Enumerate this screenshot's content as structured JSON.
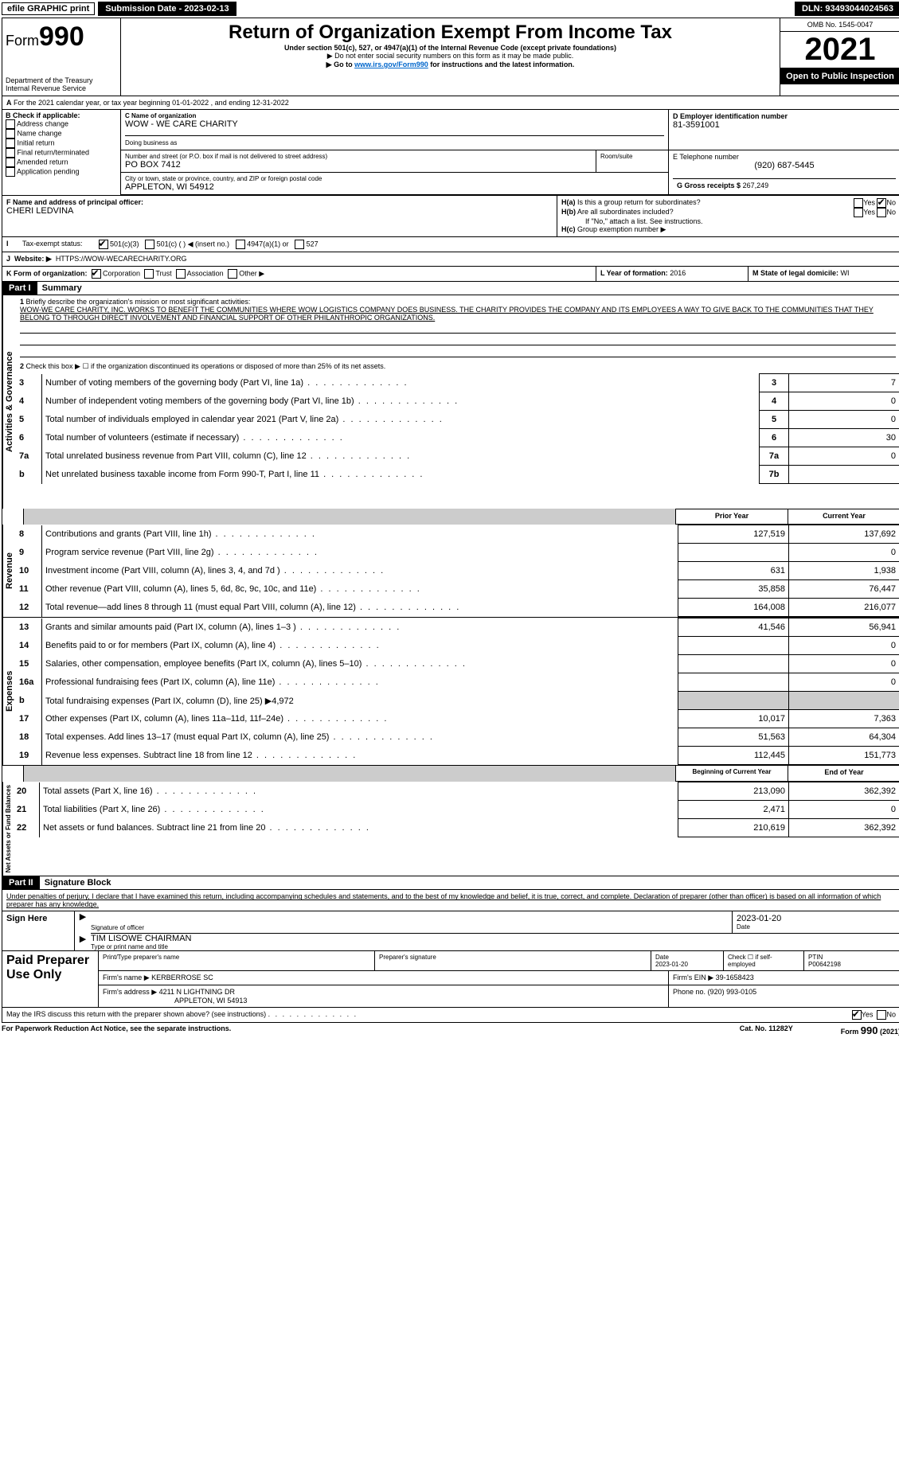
{
  "topbar": {
    "efile": "efile GRAPHIC print",
    "submission_label": "Submission Date - 2023-02-13",
    "dln_label": "DLN: 93493044024563"
  },
  "header": {
    "form_word": "Form",
    "form_num": "990",
    "title": "Return of Organization Exempt From Income Tax",
    "subtitle": "Under section 501(c), 527, or 4947(a)(1) of the Internal Revenue Code (except private foundations)",
    "ssn_note": "▶ Do not enter social security numbers on this form as it may be made public.",
    "goto_pre": "▶ Go to ",
    "goto_link": "www.irs.gov/Form990",
    "goto_post": " for instructions and the latest information.",
    "dept": "Department of the Treasury",
    "irs": "Internal Revenue Service",
    "omb": "OMB No. 1545-0047",
    "year": "2021",
    "open": "Open to Public Inspection"
  },
  "A": {
    "line": "For the 2021 calendar year, or tax year beginning 01-01-2022   , and ending 12-31-2022"
  },
  "B": {
    "label": "B Check if applicable:",
    "items": [
      "Address change",
      "Name change",
      "Initial return",
      "Final return/terminated",
      "Amended return",
      "Application pending"
    ]
  },
  "C": {
    "name_label": "C Name of organization",
    "name": "WOW - WE CARE CHARITY",
    "dba_label": "Doing business as",
    "dba": "",
    "street_label": "Number and street (or P.O. box if mail is not delivered to street address)",
    "room_label": "Room/suite",
    "street": "PO BOX 7412",
    "city_label": "City or town, state or province, country, and ZIP or foreign postal code",
    "city": "APPLETON, WI  54912"
  },
  "D": {
    "label": "D Employer identification number",
    "value": "81-3591001"
  },
  "E": {
    "label": "E Telephone number",
    "value": "(920) 687-5445"
  },
  "G": {
    "label": "G Gross receipts $",
    "value": "267,249"
  },
  "F": {
    "label": "F  Name and address of principal officer:",
    "value": "CHERI LEDVINA"
  },
  "H": {
    "a_label": "H(a)  Is this a group return for subordinates?",
    "b_label": "H(b)  Are all subordinates included?",
    "b_note": "If \"No,\" attach a list. See instructions.",
    "c_label": "H(c)  Group exemption number ▶",
    "yes": "Yes",
    "no": "No"
  },
  "I": {
    "label": "Tax-exempt status:",
    "opts": [
      "501(c)(3)",
      "501(c) (  ) ◀ (insert no.)",
      "4947(a)(1) or",
      "527"
    ]
  },
  "J": {
    "label": "Website: ▶",
    "value": "HTTPS://WOW-WECARECHARITY.ORG"
  },
  "K": {
    "label": "K Form of organization:",
    "opts": [
      "Corporation",
      "Trust",
      "Association",
      "Other ▶"
    ]
  },
  "L": {
    "label": "L Year of formation:",
    "value": "2016"
  },
  "M": {
    "label": "M State of legal domicile:",
    "value": "WI"
  },
  "part1": {
    "title": "Part I",
    "name": "Summary",
    "q1": "Briefly describe the organization's mission or most significant activities:",
    "mission": "WOW-WE CARE CHARITY, INC. WORKS TO BENEFIT THE COMMUNITIES WHERE WOW LOGISTICS COMPANY DOES BUSINESS. THE CHARITY PROVIDES THE COMPANY AND ITS EMPLOYEES A WAY TO GIVE BACK TO THE COMMUNITIES THAT THEY BELONG TO THROUGH DIRECT INVOLVEMENT AND FINANCIAL SUPPORT OF OTHER PHILANTHROPIC ORGANIZATIONS.",
    "q2": "Check this box ▶ ☐  if the organization discontinued its operations or disposed of more than 25% of its net assets.",
    "rows_top": [
      {
        "n": "3",
        "t": "Number of voting members of the governing body (Part VI, line 1a)",
        "box": "3",
        "v": "7"
      },
      {
        "n": "4",
        "t": "Number of independent voting members of the governing body (Part VI, line 1b)",
        "box": "4",
        "v": "0"
      },
      {
        "n": "5",
        "t": "Total number of individuals employed in calendar year 2021 (Part V, line 2a)",
        "box": "5",
        "v": "0"
      },
      {
        "n": "6",
        "t": "Total number of volunteers (estimate if necessary)",
        "box": "6",
        "v": "30"
      },
      {
        "n": "7a",
        "t": "Total unrelated business revenue from Part VIII, column (C), line 12",
        "box": "7a",
        "v": "0"
      },
      {
        "n": "b",
        "t": "Net unrelated business taxable income from Form 990-T, Part I, line 11",
        "box": "7b",
        "v": ""
      }
    ],
    "col_prior": "Prior Year",
    "col_current": "Current Year",
    "revenue": [
      {
        "n": "8",
        "t": "Contributions and grants (Part VIII, line 1h)",
        "p": "127,519",
        "c": "137,692"
      },
      {
        "n": "9",
        "t": "Program service revenue (Part VIII, line 2g)",
        "p": "",
        "c": "0"
      },
      {
        "n": "10",
        "t": "Investment income (Part VIII, column (A), lines 3, 4, and 7d )",
        "p": "631",
        "c": "1,938"
      },
      {
        "n": "11",
        "t": "Other revenue (Part VIII, column (A), lines 5, 6d, 8c, 9c, 10c, and 11e)",
        "p": "35,858",
        "c": "76,447"
      },
      {
        "n": "12",
        "t": "Total revenue—add lines 8 through 11 (must equal Part VIII, column (A), line 12)",
        "p": "164,008",
        "c": "216,077"
      }
    ],
    "expenses": [
      {
        "n": "13",
        "t": "Grants and similar amounts paid (Part IX, column (A), lines 1–3 )",
        "p": "41,546",
        "c": "56,941"
      },
      {
        "n": "14",
        "t": "Benefits paid to or for members (Part IX, column (A), line 4)",
        "p": "",
        "c": "0"
      },
      {
        "n": "15",
        "t": "Salaries, other compensation, employee benefits (Part IX, column (A), lines 5–10)",
        "p": "",
        "c": "0"
      },
      {
        "n": "16a",
        "t": "Professional fundraising fees (Part IX, column (A), line 11e)",
        "p": "",
        "c": "0"
      },
      {
        "n": "b",
        "t": "Total fundraising expenses (Part IX, column (D), line 25) ▶4,972",
        "p": null,
        "c": null
      },
      {
        "n": "17",
        "t": "Other expenses (Part IX, column (A), lines 11a–11d, 11f–24e)",
        "p": "10,017",
        "c": "7,363"
      },
      {
        "n": "18",
        "t": "Total expenses. Add lines 13–17 (must equal Part IX, column (A), line 25)",
        "p": "51,563",
        "c": "64,304"
      },
      {
        "n": "19",
        "t": "Revenue less expenses. Subtract line 18 from line 12",
        "p": "112,445",
        "c": "151,773"
      }
    ],
    "col_begin": "Beginning of Current Year",
    "col_end": "End of Year",
    "netassets": [
      {
        "n": "20",
        "t": "Total assets (Part X, line 16)",
        "p": "213,090",
        "c": "362,392"
      },
      {
        "n": "21",
        "t": "Total liabilities (Part X, line 26)",
        "p": "2,471",
        "c": "0"
      },
      {
        "n": "22",
        "t": "Net assets or fund balances. Subtract line 21 from line 20",
        "p": "210,619",
        "c": "362,392"
      }
    ],
    "sidelabels": {
      "ag": "Activities & Governance",
      "rev": "Revenue",
      "exp": "Expenses",
      "na": "Net Assets or Fund Balances"
    }
  },
  "part2": {
    "title": "Part II",
    "name": "Signature Block",
    "declaration": "Under penalties of perjury, I declare that I have examined this return, including accompanying schedules and statements, and to the best of my knowledge and belief, it is true, correct, and complete. Declaration of preparer (other than officer) is based on all information of which preparer has any knowledge.",
    "sign_here": "Sign Here",
    "sig_officer": "Signature of officer",
    "date_label": "Date",
    "officer_date": "2023-01-20",
    "officer_name": "TIM LISOWE  CHAIRMAN",
    "type_name": "Type or print name and title",
    "paid": "Paid Preparer Use Only",
    "p_name_label": "Print/Type preparer's name",
    "p_sig_label": "Preparer's signature",
    "p_date_label": "Date",
    "p_date": "2023-01-20",
    "p_check_label": "Check ☐ if self-employed",
    "ptin_label": "PTIN",
    "ptin": "P00642198",
    "firm_name_label": "Firm's name   ▶",
    "firm_name": "KERBERROSE SC",
    "firm_ein_label": "Firm's EIN ▶",
    "firm_ein": "39-1658423",
    "firm_addr_label": "Firm's address ▶",
    "firm_addr1": "4211 N LIGHTNING DR",
    "firm_addr2": "APPLETON, WI  54913",
    "phone_label": "Phone no.",
    "phone": "(920) 993-0105",
    "discuss": "May the IRS discuss this return with the preparer shown above? (see instructions)",
    "yes": "Yes",
    "no": "No"
  },
  "footer": {
    "pra": "For Paperwork Reduction Act Notice, see the separate instructions.",
    "cat": "Cat. No. 11282Y",
    "form": "Form 990 (2021)"
  }
}
